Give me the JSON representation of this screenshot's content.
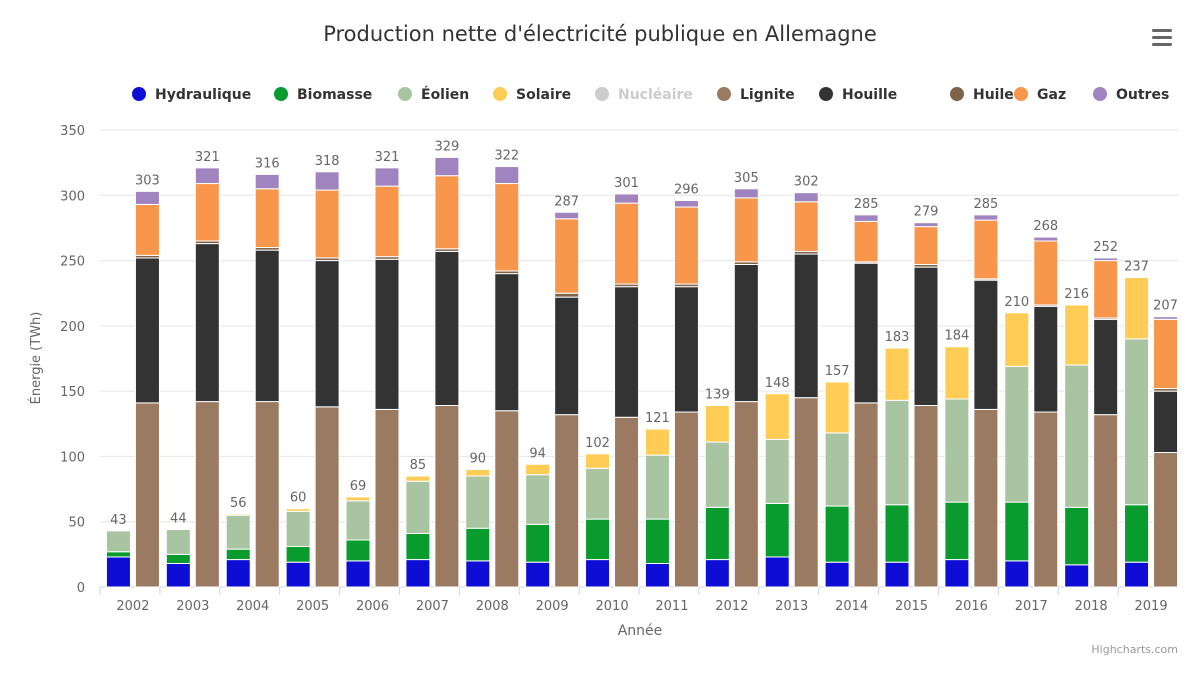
{
  "chart_data": {
    "type": "bar",
    "stacked": true,
    "title": "Production nette d'électricité publique en Allemagne",
    "xlabel": "Année",
    "ylabel": "Énergie (TWh)",
    "ylim": [
      0,
      350
    ],
    "yticks": [
      0,
      50,
      100,
      150,
      200,
      250,
      300,
      350
    ],
    "grid": true,
    "legend_position": "top",
    "categories": [
      "2002",
      "2003",
      "2004",
      "2005",
      "2006",
      "2007",
      "2008",
      "2009",
      "2010",
      "2011",
      "2012",
      "2013",
      "2014",
      "2015",
      "2016",
      "2017",
      "2018",
      "2019"
    ],
    "stacks": [
      {
        "name": "renouvelables",
        "series": [
          "Hydraulique",
          "Biomasse",
          "Éolien",
          "Solaire"
        ],
        "totals": [
          43,
          44,
          56,
          60,
          69,
          85,
          90,
          94,
          102,
          121,
          139,
          148,
          157,
          183,
          184,
          210,
          216,
          237
        ]
      },
      {
        "name": "conventionnelles",
        "series": [
          "Nucléaire",
          "Lignite",
          "Houille",
          "Huile",
          "Gaz",
          "Outres"
        ],
        "totals": [
          303,
          321,
          316,
          318,
          321,
          329,
          322,
          287,
          301,
          296,
          305,
          302,
          285,
          279,
          285,
          268,
          252,
          207
        ]
      }
    ],
    "series": [
      {
        "name": "Hydraulique",
        "color": "#0d0dd6",
        "stack": "renouvelables",
        "visible": true,
        "values": [
          23,
          18,
          21,
          19,
          20,
          21,
          20,
          19,
          21,
          18,
          21,
          23,
          19,
          19,
          21,
          20,
          17,
          19
        ]
      },
      {
        "name": "Biomasse",
        "color": "#0a9b2e",
        "stack": "renouvelables",
        "visible": true,
        "values": [
          4,
          7,
          8,
          12,
          16,
          20,
          25,
          29,
          31,
          34,
          40,
          41,
          43,
          44,
          44,
          45,
          44,
          44
        ]
      },
      {
        "name": "Éolien",
        "color": "#a9c4a0",
        "stack": "renouvelables",
        "visible": true,
        "values": [
          16,
          19,
          26,
          27,
          30,
          40,
          40,
          38,
          39,
          49,
          50,
          49,
          56,
          80,
          79,
          104,
          109,
          127
        ]
      },
      {
        "name": "Solaire",
        "color": "#ffcc55",
        "stack": "renouvelables",
        "visible": true,
        "values": [
          0,
          0,
          1,
          2,
          3,
          4,
          5,
          8,
          11,
          20,
          28,
          35,
          39,
          40,
          40,
          41,
          46,
          47
        ]
      },
      {
        "name": "Nucléaire",
        "color": "#cccccc",
        "stack": "conventionnelles",
        "visible": false,
        "values": [
          0,
          0,
          0,
          0,
          0,
          0,
          0,
          0,
          0,
          0,
          0,
          0,
          0,
          0,
          0,
          0,
          0,
          0
        ]
      },
      {
        "name": "Lignite",
        "color": "#9a7b61",
        "stack": "conventionnelles",
        "visible": true,
        "values": [
          141,
          142,
          142,
          138,
          136,
          139,
          135,
          132,
          130,
          134,
          142,
          145,
          141,
          139,
          136,
          134,
          132,
          103
        ]
      },
      {
        "name": "Houille",
        "color": "#333333",
        "stack": "conventionnelles",
        "visible": true,
        "values": [
          111,
          121,
          116,
          112,
          115,
          118,
          105,
          90,
          100,
          96,
          105,
          110,
          107,
          106,
          99,
          81,
          73,
          47
        ]
      },
      {
        "name": "Huile",
        "color": "#7f6348",
        "stack": "conventionnelles",
        "visible": true,
        "values": [
          2,
          2,
          2,
          2,
          2,
          2,
          2,
          3,
          2,
          2,
          2,
          2,
          1,
          2,
          1,
          1,
          1,
          2
        ]
      },
      {
        "name": "Gaz",
        "color": "#f8964b",
        "stack": "conventionnelles",
        "visible": true,
        "values": [
          39,
          44,
          45,
          52,
          54,
          56,
          67,
          57,
          62,
          59,
          49,
          38,
          31,
          29,
          45,
          49,
          44,
          53
        ]
      },
      {
        "name": "Outres",
        "color": "#a084c0",
        "stack": "conventionnelles",
        "visible": true,
        "values": [
          10,
          12,
          11,
          14,
          14,
          14,
          13,
          5,
          7,
          5,
          7,
          7,
          5,
          3,
          4,
          3,
          2,
          2
        ]
      }
    ]
  },
  "ui": {
    "credits": "Highcharts.com",
    "menu_icon": "hamburger-menu-icon"
  },
  "colors": {
    "grid": "#e6e6e6",
    "axis_line": "#ccd6eb",
    "label_text": "#666666",
    "title_text": "#333333",
    "legend_text": "#333333",
    "legend_hidden_text": "#cccccc"
  }
}
